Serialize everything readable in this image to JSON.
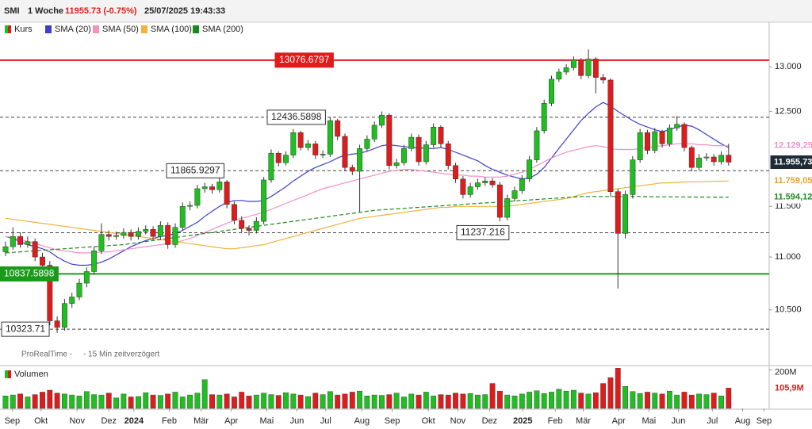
{
  "chart_data": {
    "type": "candlestick",
    "name": "Kurs",
    "header": [
      "SMI",
      "1 Woche",
      "11955.73 (-0.75%)",
      "25/07/2025 19:43:33"
    ],
    "source": "ProRealTime -     - 15 Min zeitverzögert",
    "log_scale": true,
    "grid": false,
    "up_color": "#1fbf1f",
    "down_color": "#e01b1b",
    "xlim": [
      -0.75,
      103.5
    ],
    "xticks": [
      {
        "value": 0.9,
        "label": "Sep"
      },
      {
        "value": 4.8,
        "label": "Okt"
      },
      {
        "value": 9.7,
        "label": "Nov"
      },
      {
        "value": 14.0,
        "label": "Dez"
      },
      {
        "value": 17.4,
        "label": "2024"
      },
      {
        "value": 22.2,
        "label": "Feb"
      },
      {
        "value": 26.5,
        "label": "Mär"
      },
      {
        "value": 30.6,
        "label": "Apr"
      },
      {
        "value": 35.4,
        "label": "Mai"
      },
      {
        "value": 39.5,
        "label": "Jun"
      },
      {
        "value": 43.4,
        "label": "Jul"
      },
      {
        "value": 48.3,
        "label": "Aug"
      },
      {
        "value": 52.4,
        "label": "Sep"
      },
      {
        "value": 57.3,
        "label": "Okt"
      },
      {
        "value": 61.3,
        "label": "Nov"
      },
      {
        "value": 65.6,
        "label": "Dez"
      },
      {
        "value": 70.1,
        "label": "2025"
      },
      {
        "value": 74.5,
        "label": "Feb"
      },
      {
        "value": 78.3,
        "label": "Mär"
      },
      {
        "value": 83.1,
        "label": "Apr"
      },
      {
        "value": 87.2,
        "label": "Mai"
      },
      {
        "value": 91.2,
        "label": "Jun"
      },
      {
        "value": 95.8,
        "label": "Jul"
      },
      {
        "value": 99.9,
        "label": "Aug"
      },
      {
        "value": 102.8,
        "label": "Sep"
      }
    ],
    "ylim": [
      10020,
      13520
    ],
    "yticks": [
      {
        "value": 10500,
        "label": "10.500"
      },
      {
        "value": 11000,
        "label": "11.000"
      },
      {
        "value": 11500,
        "label": "11.500"
      },
      {
        "value": 12500,
        "label": "12.500"
      },
      {
        "value": 13000,
        "label": "13.000"
      }
    ],
    "open": [
      11050,
      11100,
      11200,
      11120,
      11150,
      11000,
      10920,
      10400,
      10340,
      10560,
      10620,
      10750,
      10860,
      11060,
      11220,
      11200,
      11210,
      11240,
      11200,
      11250,
      11270,
      11200,
      11310,
      11120,
      11290,
      11500,
      11510,
      11680,
      11700,
      11670,
      11750,
      11520,
      11360,
      11280,
      11260,
      11350,
      11770,
      12050,
      11950,
      12030,
      12270,
      12110,
      12150,
      12030,
      12040,
      12400,
      12230,
      11900,
      11860,
      12100,
      12200,
      12350,
      12460,
      11920,
      11950,
      12100,
      12220,
      11960,
      12140,
      12330,
      12150,
      11920,
      11780,
      11620,
      11700,
      11740,
      11760,
      11720,
      11390,
      11580,
      11660,
      11780,
      11980,
      12290,
      12590,
      12860,
      12940,
      12990,
      13080,
      12900,
      13090,
      12880,
      12850,
      11650,
      11230,
      11620,
      11980,
      12270,
      12080,
      12280,
      12150,
      12320,
      12360,
      12110,
      11900,
      12000,
      12010,
      11960,
      12030
    ],
    "high": [
      11150,
      11290,
      11240,
      11200,
      11180,
      11040,
      10960,
      10440,
      10600,
      10660,
      10790,
      10900,
      11100,
      11330,
      11260,
      11250,
      11280,
      11270,
      11290,
      11310,
      11300,
      11350,
      11340,
      11330,
      11540,
      11550,
      11720,
      11740,
      11730,
      11790,
      11770,
      11550,
      11400,
      11310,
      11390,
      11800,
      12090,
      12070,
      12070,
      12310,
      12290,
      12190,
      12180,
      12080,
      12440,
      12420,
      12260,
      11930,
      12140,
      12240,
      12390,
      12500,
      12480,
      11990,
      12140,
      12260,
      12250,
      12180,
      12370,
      12350,
      12180,
      11950,
      11810,
      11740,
      11780,
      11800,
      11790,
      11750,
      11620,
      11700,
      11820,
      12020,
      12330,
      12630,
      12900,
      12980,
      13030,
      13120,
      13100,
      13200,
      13110,
      12920,
      12870,
      11680,
      11660,
      12020,
      12310,
      12300,
      12320,
      12300,
      12360,
      12450,
      12380,
      12130,
      12040,
      12050,
      12040,
      12070,
      12150
    ],
    "low": [
      11010,
      11070,
      11090,
      11090,
      10960,
      10880,
      10360,
      10290,
      10310,
      10520,
      10590,
      10710,
      10830,
      11030,
      11160,
      11170,
      11180,
      11160,
      11170,
      11220,
      11160,
      11170,
      11080,
      11090,
      11260,
      11460,
      11480,
      11640,
      11630,
      11640,
      11480,
      11320,
      11240,
      11210,
      11230,
      11320,
      11740,
      11910,
      11920,
      12000,
      12080,
      12080,
      11990,
      12000,
      12010,
      12190,
      11860,
      11820,
      11440,
      12070,
      12170,
      12320,
      11880,
      11890,
      11920,
      12070,
      11920,
      11930,
      12110,
      12110,
      11880,
      11740,
      11580,
      11590,
      11670,
      11710,
      11690,
      11350,
      11360,
      11550,
      11630,
      11750,
      11950,
      12260,
      12560,
      12830,
      12910,
      12960,
      12860,
      12870,
      12700,
      12810,
      11600,
      10700,
      11180,
      11580,
      11950,
      12040,
      12050,
      12110,
      12120,
      12290,
      12070,
      11860,
      11870,
      11970,
      11920,
      11930,
      11920
    ],
    "close": [
      11100,
      11200,
      11120,
      11150,
      11000,
      10920,
      10400,
      10340,
      10560,
      10620,
      10750,
      10860,
      11060,
      11220,
      11200,
      11210,
      11240,
      11200,
      11250,
      11270,
      11200,
      11310,
      11120,
      11290,
      11500,
      11510,
      11680,
      11700,
      11670,
      11750,
      11520,
      11360,
      11280,
      11260,
      11350,
      11770,
      12050,
      11950,
      12030,
      12270,
      12110,
      12150,
      12030,
      12040,
      12400,
      12230,
      11900,
      11860,
      12100,
      12200,
      12350,
      12460,
      11920,
      11950,
      12100,
      12220,
      11960,
      12140,
      12330,
      12150,
      11920,
      11780,
      11620,
      11700,
      11740,
      11760,
      11720,
      11390,
      11580,
      11660,
      11780,
      11980,
      12290,
      12590,
      12860,
      12940,
      12990,
      13080,
      12900,
      13090,
      12880,
      12850,
      11650,
      11230,
      11620,
      11980,
      12270,
      12080,
      12280,
      12150,
      12320,
      12360,
      12110,
      11900,
      12000,
      12010,
      11960,
      12030,
      11955.73
    ],
    "series": [
      {
        "name": "SMA (20)",
        "color": "#3d3dd1",
        "style": "solid",
        "values": [
          11200,
          11180,
          11150,
          11120,
          11100,
          11080,
          11050,
          11000,
          10960,
          10930,
          10920,
          10920,
          10930,
          10950,
          10980,
          11020,
          11060,
          11100,
          11130,
          11160,
          11180,
          11200,
          11210,
          11230,
          11260,
          11300,
          11340,
          11400,
          11450,
          11500,
          11540,
          11560,
          11560,
          11550,
          11550,
          11560,
          11600,
          11650,
          11700,
          11760,
          11810,
          11860,
          11900,
          11930,
          11960,
          12000,
          12030,
          12040,
          12050,
          12070,
          12100,
          12130,
          12140,
          12130,
          12120,
          12110,
          12110,
          12100,
          12100,
          12110,
          12090,
          12060,
          12030,
          12000,
          11970,
          11920,
          11880,
          11850,
          11820,
          11800,
          11780,
          11790,
          11830,
          11900,
          12000,
          12100,
          12200,
          12300,
          12400,
          12480,
          12550,
          12600,
          12560,
          12500,
          12450,
          12400,
          12360,
          12330,
          12300,
          12280,
          12300,
          12330,
          12350,
          12340,
          12300,
          12250,
          12200,
          12150,
          12110
        ]
      },
      {
        "name": "SMA (50)",
        "color": "#f58fc6",
        "style": "solid",
        "values": [
          11200,
          11190,
          11170,
          11150,
          11130,
          11110,
          11090,
          11070,
          11060,
          11050,
          11040,
          11040,
          11040,
          11050,
          11050,
          11060,
          11070,
          11080,
          11090,
          11100,
          11110,
          11120,
          11130,
          11140,
          11160,
          11180,
          11210,
          11240,
          11270,
          11300,
          11330,
          11360,
          11380,
          11400,
          11420,
          11440,
          11470,
          11500,
          11530,
          11560,
          11590,
          11620,
          11650,
          11680,
          11700,
          11720,
          11740,
          11760,
          11780,
          11800,
          11820,
          11840,
          11860,
          11870,
          11880,
          11880,
          11870,
          11860,
          11850,
          11840,
          11830,
          11820,
          11820,
          11810,
          11810,
          11800,
          11800,
          11800,
          11810,
          11830,
          11850,
          11880,
          11920,
          11960,
          12000,
          12030,
          12060,
          12080,
          12100,
          12120,
          12130,
          12120,
          12100,
          12090,
          12090,
          12090,
          12100,
          12110,
          12120,
          12130,
          12140,
          12150,
          12150,
          12150,
          12140,
          12140,
          12130,
          12130,
          12129.25
        ]
      },
      {
        "name": "SMA (100)",
        "color": "#f2b23c",
        "style": "solid",
        "values": [
          11380,
          11370,
          11360,
          11350,
          11340,
          11330,
          11320,
          11310,
          11300,
          11290,
          11280,
          11270,
          11260,
          11250,
          11240,
          11230,
          11220,
          11210,
          11200,
          11190,
          11180,
          11170,
          11160,
          11150,
          11140,
          11130,
          11120,
          11110,
          11100,
          11090,
          11080,
          11080,
          11090,
          11100,
          11110,
          11120,
          11140,
          11160,
          11180,
          11200,
          11220,
          11240,
          11260,
          11280,
          11300,
          11320,
          11340,
          11360,
          11380,
          11390,
          11400,
          11410,
          11420,
          11430,
          11440,
          11450,
          11460,
          11470,
          11480,
          11490,
          11490,
          11500,
          11500,
          11500,
          11500,
          11500,
          11500,
          11500,
          11500,
          11510,
          11520,
          11530,
          11540,
          11550,
          11560,
          11570,
          11580,
          11600,
          11620,
          11640,
          11650,
          11660,
          11670,
          11680,
          11690,
          11700,
          11710,
          11720,
          11730,
          11740,
          11740,
          11745,
          11750,
          11750,
          11752,
          11754,
          11756,
          11757,
          11759.05
        ]
      },
      {
        "name": "SMA (200)",
        "color": "#1a8a1a",
        "style": "dashed",
        "values": [
          11040,
          11045,
          11050,
          11055,
          11060,
          11065,
          11070,
          11075,
          11080,
          11085,
          11090,
          11095,
          11100,
          11105,
          11110,
          11115,
          11120,
          11130,
          11140,
          11150,
          11160,
          11170,
          11180,
          11190,
          11200,
          11210,
          11220,
          11230,
          11240,
          11250,
          11260,
          11270,
          11280,
          11290,
          11300,
          11310,
          11320,
          11330,
          11340,
          11350,
          11360,
          11370,
          11380,
          11390,
          11400,
          11410,
          11420,
          11430,
          11440,
          11450,
          11460,
          11465,
          11470,
          11475,
          11480,
          11485,
          11490,
          11495,
          11500,
          11505,
          11510,
          11515,
          11520,
          11525,
          11530,
          11535,
          11540,
          11545,
          11550,
          11555,
          11560,
          11565,
          11570,
          11575,
          11580,
          11585,
          11590,
          11595,
          11600,
          11600,
          11600,
          11600,
          11600,
          11600,
          11600,
          11600,
          11600,
          11599,
          11598,
          11597,
          11597,
          11596,
          11596,
          11595,
          11595,
          11595,
          11594,
          11594,
          11594.12
        ]
      }
    ],
    "levels": [
      {
        "value": 13076.6797,
        "color": "#e01b1b",
        "style": "solid"
      },
      {
        "value": 12436.5898,
        "color": "#444444",
        "style": "dashed"
      },
      {
        "value": 11865.9297,
        "color": "#444444",
        "style": "dashed"
      },
      {
        "value": 11237.216,
        "color": "#444444",
        "style": "dashed"
      },
      {
        "value": 10837.5898,
        "color": "#1a9a1a",
        "style": "solid"
      },
      {
        "value": 10323.71,
        "color": "#444444",
        "style": "dashed"
      }
    ],
    "price_labels": [
      {
        "value": 12129.25,
        "label": "12.129,25",
        "color": "#f58fc6"
      },
      {
        "value": 11955.73,
        "label": "11.955,73",
        "color": "#1e2a36"
      },
      {
        "value": 11759.05,
        "label": "11.759,05",
        "color": "#e9a12a"
      },
      {
        "value": 11594.12,
        "label": "11.594,12",
        "color": "#1a8a1a"
      }
    ],
    "volume": {
      "name": "Volumen",
      "ylim": [
        0,
        215
      ],
      "yticks": [
        {
          "value": 200,
          "label": "200M"
        }
      ],
      "last": {
        "value": 105.9,
        "label": "105,9M"
      },
      "values": [
        65,
        70,
        75,
        60,
        72,
        85,
        95,
        80,
        75,
        70,
        65,
        88,
        72,
        70,
        80,
        55,
        75,
        60,
        62,
        82,
        70,
        68,
        75,
        85,
        60,
        70,
        80,
        150,
        72,
        70,
        75,
        60,
        85,
        65,
        70,
        80,
        72,
        68,
        82,
        75,
        70,
        62,
        80,
        72,
        88,
        70,
        75,
        85,
        90,
        65,
        70,
        68,
        72,
        80,
        60,
        75,
        70,
        85,
        65,
        72,
        70,
        80,
        75,
        78,
        70,
        72,
        130,
        90,
        70,
        65,
        75,
        85,
        92,
        78,
        85,
        100,
        90,
        95,
        80,
        75,
        82,
        130,
        160,
        210,
        115,
        88,
        78,
        85,
        80,
        75,
        90,
        70,
        85,
        70,
        75,
        72,
        80,
        65,
        105.9
      ]
    }
  }
}
